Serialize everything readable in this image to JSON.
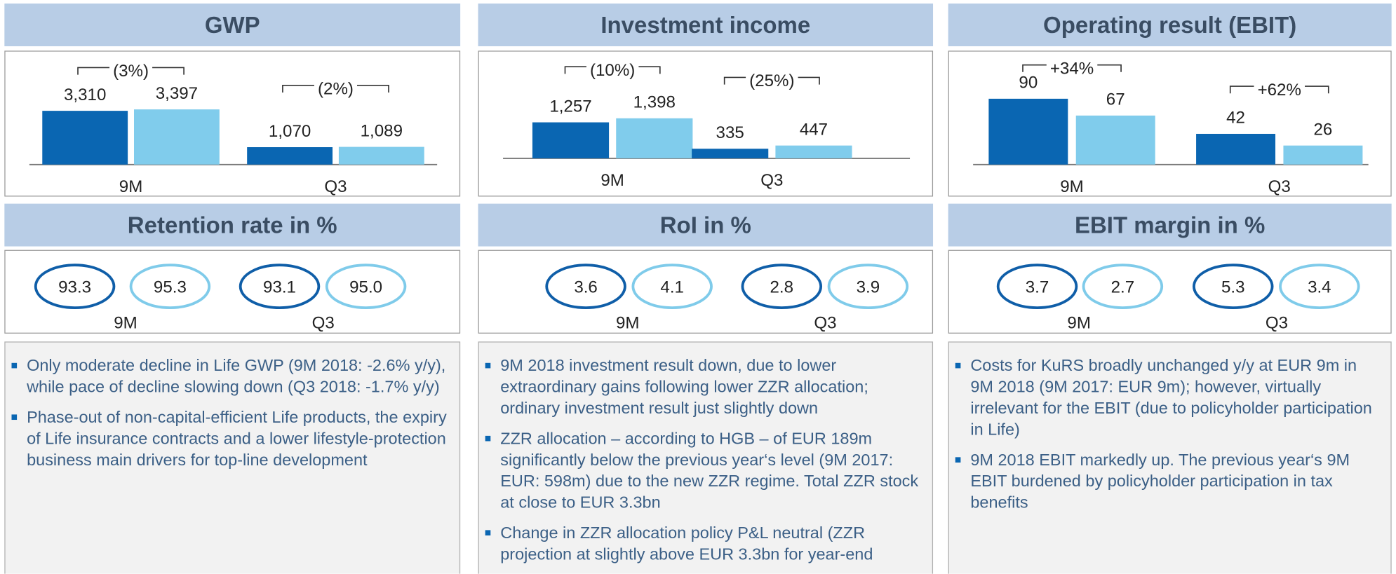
{
  "chart_data": [
    {
      "type": "bar",
      "title": "GWP",
      "categories": [
        "9M",
        "Q3"
      ],
      "series": [
        {
          "color": "#0a66b2",
          "values": [
            3310,
            1070
          ],
          "value_labels": [
            "3,310",
            "1,070"
          ]
        },
        {
          "color": "#80ccec",
          "values": [
            3397,
            1089
          ],
          "value_labels": [
            "3,397",
            "1,089"
          ]
        }
      ],
      "annotations": [
        "(3%)",
        "(2%)"
      ]
    },
    {
      "type": "bar",
      "title": "Investment income",
      "categories": [
        "9M",
        "Q3"
      ],
      "series": [
        {
          "color": "#0a66b2",
          "values": [
            1257,
            335
          ],
          "value_labels": [
            "1,257",
            "335"
          ]
        },
        {
          "color": "#80ccec",
          "values": [
            1398,
            447
          ],
          "value_labels": [
            "1,398",
            "447"
          ]
        }
      ],
      "annotations": [
        "(10%)",
        "(25%)"
      ]
    },
    {
      "type": "bar",
      "title": "Operating result (EBIT)",
      "categories": [
        "9M",
        "Q3"
      ],
      "series": [
        {
          "color": "#0a66b2",
          "values": [
            90,
            42
          ]
        },
        {
          "color": "#80ccec",
          "values": [
            67,
            26
          ]
        }
      ],
      "annotations": [
        "+34%",
        "+62%"
      ]
    }
  ],
  "kpis": [
    {
      "title": "Retention rate in %",
      "groups": [
        {
          "label": "9M",
          "values": [
            "93.3",
            "95.3"
          ]
        },
        {
          "label": "Q3",
          "values": [
            "93.1",
            "95.0"
          ]
        }
      ]
    },
    {
      "title": "RoI in %",
      "groups": [
        {
          "label": "9M",
          "values": [
            "3.6",
            "4.1"
          ]
        },
        {
          "label": "Q3",
          "values": [
            "2.8",
            "3.9"
          ]
        }
      ]
    },
    {
      "title": "EBIT margin in %",
      "groups": [
        {
          "label": "9M",
          "values": [
            "3.7",
            "2.7"
          ]
        },
        {
          "label": "Q3",
          "values": [
            "5.3",
            "3.4"
          ]
        }
      ]
    }
  ],
  "notes": [
    [
      "Only moderate decline in Life GWP (9M 2018: -2.6% y/y), while pace of decline slowing down (Q3 2018: -1.7% y/y)",
      "Phase-out of non-capital-efficient Life products, the expiry of Life insurance contracts and a lower lifestyle-protection business main drivers for top-line development"
    ],
    [
      "9M 2018 investment result down, due to lower extraordinary gains following lower ZZR allocation; ordinary investment result just slightly down",
      "ZZR allocation – according to HGB – of EUR 189m significantly below the previous year‘s level (9M 2017: EUR: 598m) due to the new ZZR regime. Total ZZR stock at close to EUR 3.3bn",
      "Change in ZZR allocation policy P&L neutral (ZZR projection at slightly above EUR 3.3bn for year-end"
    ],
    [
      "Costs for KuRS broadly unchanged y/y at EUR 9m in 9M 2018 (9M 2017: EUR 9m); however, virtually irrelevant for the EBIT (due to policyholder participation in Life)",
      "9M 2018 EBIT markedly up. The previous year‘s 9M EBIT burdened by policyholder participation in tax benefits"
    ]
  ]
}
